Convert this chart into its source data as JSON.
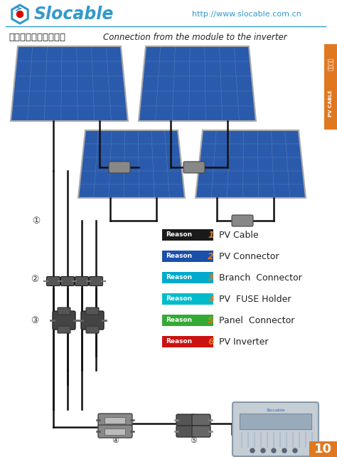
{
  "bg_color": "#ffffff",
  "header_line_color": "#3399cc",
  "brand_color": "#3399cc",
  "brand_name": "Slocable",
  "website": "http://www.slocable.com.cn",
  "website_color": "#3399cc",
  "title_cn": "从组件到逆变器的连接",
  "title_en": "Connection from the module to the inverter",
  "title_color": "#222222",
  "sidebar_color": "#e07820",
  "sidebar_text_cn": "光伏电缆",
  "sidebar_text_en": "PV CABLE",
  "sidebar_text_color": "#ffffff",
  "legend_items": [
    {
      "desc": "PV Cable",
      "bg": "#1a1a1a",
      "num": "1",
      "num_color": "#e07820"
    },
    {
      "desc": "PV Connector",
      "bg": "#1a4faa",
      "num": "2",
      "num_color": "#e07820"
    },
    {
      "desc": "Branch  Connector",
      "bg": "#00aacc",
      "num": "3",
      "num_color": "#e07820"
    },
    {
      "desc": "PV  FUSE Holder",
      "bg": "#00bbcc",
      "num": "4",
      "num_color": "#e07820"
    },
    {
      "desc": "Panel  Connector",
      "bg": "#33aa33",
      "num": "5",
      "num_color": "#e07820"
    },
    {
      "desc": "PV Inverter",
      "bg": "#cc1111",
      "num": "6",
      "num_color": "#e07820"
    }
  ],
  "panel_blue": "#2a5aab",
  "panel_grid": "#7799cc",
  "panel_frame": "#aaaaaa",
  "cable_color": "#111111",
  "cable_lw": 1.8,
  "connector_color": "#555555",
  "page_num": "10",
  "page_num_bg": "#e07820",
  "circle_color": "#333333"
}
